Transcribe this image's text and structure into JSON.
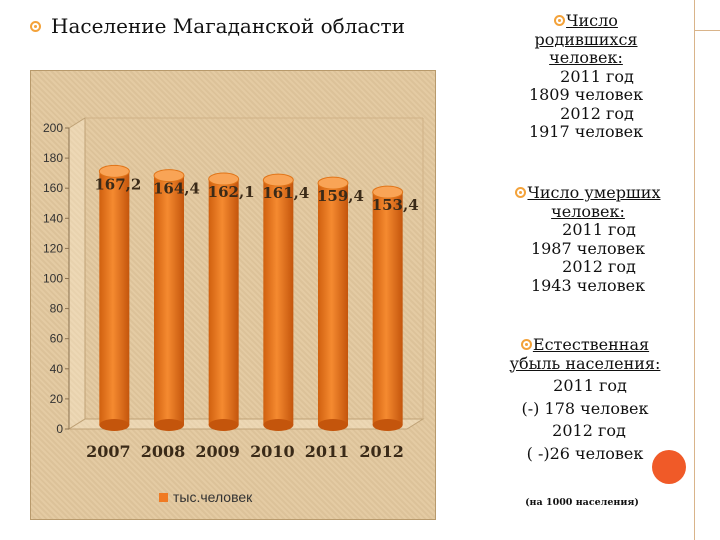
{
  "title": "Население Магаданской области",
  "legend_label": "тыс.человек",
  "colors": {
    "bar": "#f07a22",
    "bar_dark": "#c95a10",
    "bar_light": "#f9a456",
    "accent_bullet": "#f3a23a",
    "panel": "#e3c89e"
  },
  "chart_data": {
    "type": "bar",
    "categories": [
      "2007",
      "2008",
      "2009",
      "2010",
      "2011",
      "2012"
    ],
    "series": [
      {
        "name": "тыс.человек",
        "values": [
          167.2,
          164.4,
          162.1,
          161.4,
          159.4,
          153.4
        ]
      }
    ],
    "data_labels": [
      "167,2",
      "164,4",
      "162,1",
      "161,4",
      "159,4",
      "153,4"
    ],
    "y_ticks": [
      "0",
      "20",
      "40",
      "60",
      "80",
      "100",
      "120",
      "140",
      "160",
      "180",
      "200"
    ],
    "ylim": [
      0,
      200
    ],
    "legend": "bottom",
    "grid": false
  },
  "right_panel": {
    "births": {
      "heading_line1": "Число",
      "heading_line2": "родившихся",
      "heading_line3": "человек:",
      "y1": "2011 год",
      "v1": "1809 человек",
      "y2": "2012 год",
      "v2": "1917 человек"
    },
    "deaths": {
      "heading_line1": "Число умерших",
      "heading_line2": "человек:",
      "y1": "2011 год",
      "v1": "1987 человек",
      "y2": "2012 год",
      "v2": "1943 человек"
    },
    "natural": {
      "heading_line1": "Естественная",
      "heading_line2": "убыль населения:",
      "y1": "2011 год",
      "v1": "(-) 178 человек",
      "y2": "2012 год",
      "v2": "( -)26 человек"
    },
    "note": "(на 1000 населения)"
  }
}
